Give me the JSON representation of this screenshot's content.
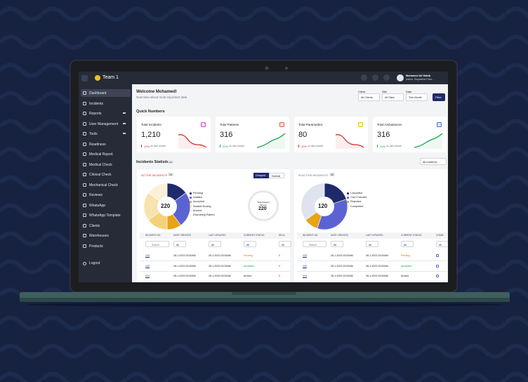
{
  "header": {
    "team": "Team 1",
    "user_name": "Mohamed Ali Habib",
    "user_role": "Admin, Dispatcher,Para..."
  },
  "sidebar": {
    "items": [
      "Dashboard",
      "Incidents",
      "Reports",
      "User Management",
      "Tools",
      "Readiness",
      "Medical Report",
      "Medical Check",
      "Clinical Check",
      "Mechanical Check",
      "Reviews",
      "WhatsApp",
      "WhatsApp Template",
      "Clients",
      "Warehouses",
      "Products"
    ],
    "logout": "Logout"
  },
  "welcome": {
    "title": "Welcome Mohamed!",
    "subtitle": "Overview about most important data"
  },
  "filters": [
    {
      "label": "Client",
      "value": "All Clients"
    },
    {
      "label": "Site",
      "value": "All Sites"
    },
    {
      "label": "Date",
      "value": "This Month"
    }
  ],
  "filter_button": "Filter",
  "quick_numbers": {
    "title": "Quick Numbers",
    "cards": [
      {
        "title": "Total Incidents",
        "value": "1,210",
        "change": "10%",
        "note": "vs last month",
        "up": false,
        "color": "#c94fd6"
      },
      {
        "title": "Total Patients",
        "value": "316",
        "change": "20%",
        "note": "vs last month",
        "up": true,
        "color": "#e0663a"
      },
      {
        "title": "Total Paramedics",
        "value": "80",
        "change": "10%",
        "note": "vs last month",
        "up": false,
        "color": "#e8c21a"
      },
      {
        "title": "Total Ambulances",
        "value": "316",
        "change": "20%",
        "note": "vs last month",
        "up": true,
        "color": "#4a6fd8"
      }
    ]
  },
  "statistics": {
    "title": "Incidents Statistics",
    "badge": "Info",
    "dropdown": "All Incidents"
  },
  "panels": [
    {
      "title": "ACTIVE INCIDENTS",
      "count": "24",
      "toggle": [
        "Delayed",
        "Normal"
      ],
      "center": "220",
      "legend": [
        "Pending",
        "Notified",
        "Accepted",
        "Started Moving",
        "Arrived",
        "Examining Patient"
      ],
      "values": [
        15,
        25,
        10,
        15,
        20,
        15
      ],
      "colors": [
        "#1f2a6b",
        "#5b63d3",
        "#e8a317",
        "#f5d27a",
        "#f7e3ad",
        "#fbf1d6"
      ],
      "gauge_label": "Total Delayed Minutes",
      "gauge_value": "220",
      "headers": [
        "INCIDENT NO.",
        "DATE CREATED",
        "LAST UPDATED",
        "CURRENT STATUS",
        "DELA"
      ],
      "search": "Search",
      "filter": "All",
      "rows": [
        [
          "123",
          "28-1-2023 03:00AM",
          "28-1-2023 03:00AM",
          "Pending",
          "5"
        ],
        [
          "142",
          "28-1-2023 03:00AM",
          "28-1-2023 03:00AM",
          "Accepted",
          "5"
        ],
        [
          "414",
          "28-1-2023 03:00AM",
          "28-1-2023 03:00AM",
          "Arrived",
          "5"
        ]
      ]
    },
    {
      "title": "IN ACTIVE INCIDENTS",
      "count": "32",
      "center": "120",
      "legend": [
        "Cancelled",
        "Can't Transfer",
        "Rejected",
        "Completed"
      ],
      "values": [
        20,
        35,
        10,
        35
      ],
      "colors": [
        "#1f2a6b",
        "#5b63d3",
        "#e8a317",
        "#dfe3ef"
      ],
      "headers": [
        "INCIDENT NO.",
        "DATE CREATED",
        "LAST UPDATED",
        "CURRENT STATUS",
        "COMM"
      ],
      "search": "Search",
      "filter": "All",
      "rows": [
        [
          "123",
          "28-1-2023 03:00AM",
          "28-1-2023 03:00AM",
          "Pending"
        ],
        [
          "142",
          "28-1-2023 03:00AM",
          "28-1-2023 03:00AM",
          "Accepted"
        ],
        [
          "414",
          "28-1-2023 03:00AM",
          "28-1-2023 03:00AM",
          "Arrived"
        ]
      ]
    }
  ]
}
